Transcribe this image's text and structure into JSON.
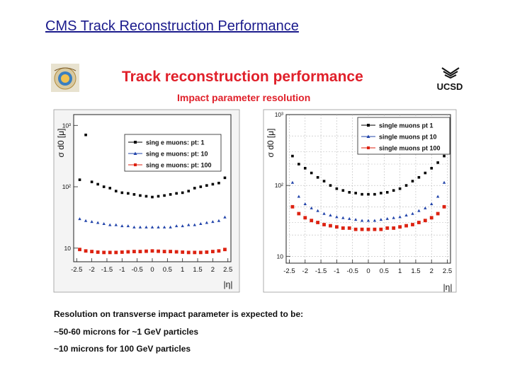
{
  "slide_title": "CMS Track Reconstruction Performance",
  "heading": "Track reconstruction performance",
  "subheading": "Impact parameter resolution",
  "logos": {
    "left": "cms-logo",
    "right": "ucsd-logo",
    "right_text": "UCSD"
  },
  "notes": [
    "Resolution on transverse impact parameter is expected to be:",
    "~50-60 microns for ~1 GeV particles",
    "~10 microns for 100 GeV particles"
  ],
  "colors": {
    "title": "#1a1a8c",
    "heading": "#e0202a",
    "pt1": "#000000",
    "pt10": "#2244aa",
    "pt100": "#dd2211"
  },
  "chart_data": [
    {
      "type": "scatter",
      "ylabel": "σ d0 [μ]",
      "xlabel": "|η|",
      "x_ticks": [
        "-2.5",
        "-2",
        "-1.5",
        "-1",
        "-0.5",
        "0",
        "0.5",
        "1",
        "1.5",
        "2",
        "2.5"
      ],
      "y_ticks": [
        "10",
        "10²",
        "10³"
      ],
      "xlim": [
        -2.6,
        2.6
      ],
      "ylim": [
        6,
        1500
      ],
      "y_scale": "log",
      "legend_position": "top-right",
      "grid": false,
      "series": [
        {
          "name": "sing e muons: pt: 1",
          "color": "#000000",
          "x": [
            -2.4,
            -2.2,
            -2.0,
            -1.8,
            -1.6,
            -1.4,
            -1.2,
            -1.0,
            -0.8,
            -0.6,
            -0.4,
            -0.2,
            0.0,
            0.2,
            0.4,
            0.6,
            0.8,
            1.0,
            1.2,
            1.4,
            1.6,
            1.8,
            2.0,
            2.2,
            2.4
          ],
          "y": [
            130,
            700,
            120,
            110,
            100,
            95,
            85,
            80,
            78,
            75,
            72,
            70,
            68,
            70,
            72,
            75,
            78,
            80,
            85,
            95,
            100,
            105,
            110,
            115,
            140
          ]
        },
        {
          "name": "sing e muons: pt: 10",
          "color": "#2244aa",
          "x": [
            -2.4,
            -2.2,
            -2.0,
            -1.8,
            -1.6,
            -1.4,
            -1.2,
            -1.0,
            -0.8,
            -0.6,
            -0.4,
            -0.2,
            0.0,
            0.2,
            0.4,
            0.6,
            0.8,
            1.0,
            1.2,
            1.4,
            1.6,
            1.8,
            2.0,
            2.2,
            2.4
          ],
          "y": [
            30,
            28,
            27,
            26,
            25,
            24,
            24,
            23,
            23,
            22,
            22,
            22,
            22,
            22,
            22,
            22,
            23,
            23,
            24,
            24,
            25,
            26,
            27,
            28,
            32
          ]
        },
        {
          "name": "sing e muons: pt: 100",
          "color": "#dd2211",
          "x": [
            -2.4,
            -2.2,
            -2.0,
            -1.8,
            -1.6,
            -1.4,
            -1.2,
            -1.0,
            -0.8,
            -0.6,
            -0.4,
            -0.2,
            0.0,
            0.2,
            0.4,
            0.6,
            0.8,
            1.0,
            1.2,
            1.4,
            1.6,
            1.8,
            2.0,
            2.2,
            2.4
          ],
          "y": [
            9.5,
            9,
            8.8,
            8.6,
            8.5,
            8.5,
            8.5,
            8.6,
            8.7,
            8.8,
            8.8,
            8.9,
            9,
            8.9,
            8.8,
            8.8,
            8.7,
            8.6,
            8.5,
            8.5,
            8.5,
            8.6,
            8.8,
            9,
            9.5
          ]
        }
      ]
    },
    {
      "type": "scatter",
      "ylabel": "σ d0 [μ]",
      "xlabel": "|η|",
      "x_ticks": [
        "-2.5",
        "-2",
        "-1.5",
        "-1",
        "-0.5",
        "0",
        "0.5",
        "1",
        "1.5",
        "2",
        "2.5"
      ],
      "y_ticks": [
        "10",
        "10²",
        "10³"
      ],
      "xlim": [
        -2.6,
        2.6
      ],
      "ylim": [
        8,
        1000
      ],
      "y_scale": "log",
      "legend_position": "top-right",
      "grid": true,
      "series": [
        {
          "name": "single muons pt 1",
          "color": "#000000",
          "x": [
            -2.4,
            -2.2,
            -2.0,
            -1.8,
            -1.6,
            -1.4,
            -1.2,
            -1.0,
            -0.8,
            -0.6,
            -0.4,
            -0.2,
            0.0,
            0.2,
            0.4,
            0.6,
            0.8,
            1.0,
            1.2,
            1.4,
            1.6,
            1.8,
            2.0,
            2.2,
            2.4
          ],
          "y": [
            260,
            200,
            175,
            150,
            130,
            115,
            100,
            90,
            85,
            80,
            78,
            75,
            75,
            75,
            78,
            80,
            85,
            90,
            100,
            115,
            130,
            150,
            175,
            210,
            260
          ]
        },
        {
          "name": "single muons pt 10",
          "color": "#2244aa",
          "x": [
            -2.4,
            -2.2,
            -2.0,
            -1.8,
            -1.6,
            -1.4,
            -1.2,
            -1.0,
            -0.8,
            -0.6,
            -0.4,
            -0.2,
            0.0,
            0.2,
            0.4,
            0.6,
            0.8,
            1.0,
            1.2,
            1.4,
            1.6,
            1.8,
            2.0,
            2.2,
            2.4
          ],
          "y": [
            110,
            70,
            55,
            48,
            44,
            40,
            38,
            36,
            35,
            34,
            33,
            32,
            32,
            32,
            33,
            34,
            35,
            36,
            38,
            40,
            44,
            48,
            55,
            70,
            110
          ]
        },
        {
          "name": "single muons pt 100",
          "color": "#dd2211",
          "x": [
            -2.4,
            -2.2,
            -2.0,
            -1.8,
            -1.6,
            -1.4,
            -1.2,
            -1.0,
            -0.8,
            -0.6,
            -0.4,
            -0.2,
            0.0,
            0.2,
            0.4,
            0.6,
            0.8,
            1.0,
            1.2,
            1.4,
            1.6,
            1.8,
            2.0,
            2.2,
            2.4
          ],
          "y": [
            50,
            40,
            35,
            32,
            30,
            28,
            27,
            26,
            25,
            25,
            24,
            24,
            24,
            24,
            24,
            25,
            25,
            26,
            27,
            28,
            30,
            32,
            35,
            40,
            50
          ]
        }
      ]
    }
  ]
}
